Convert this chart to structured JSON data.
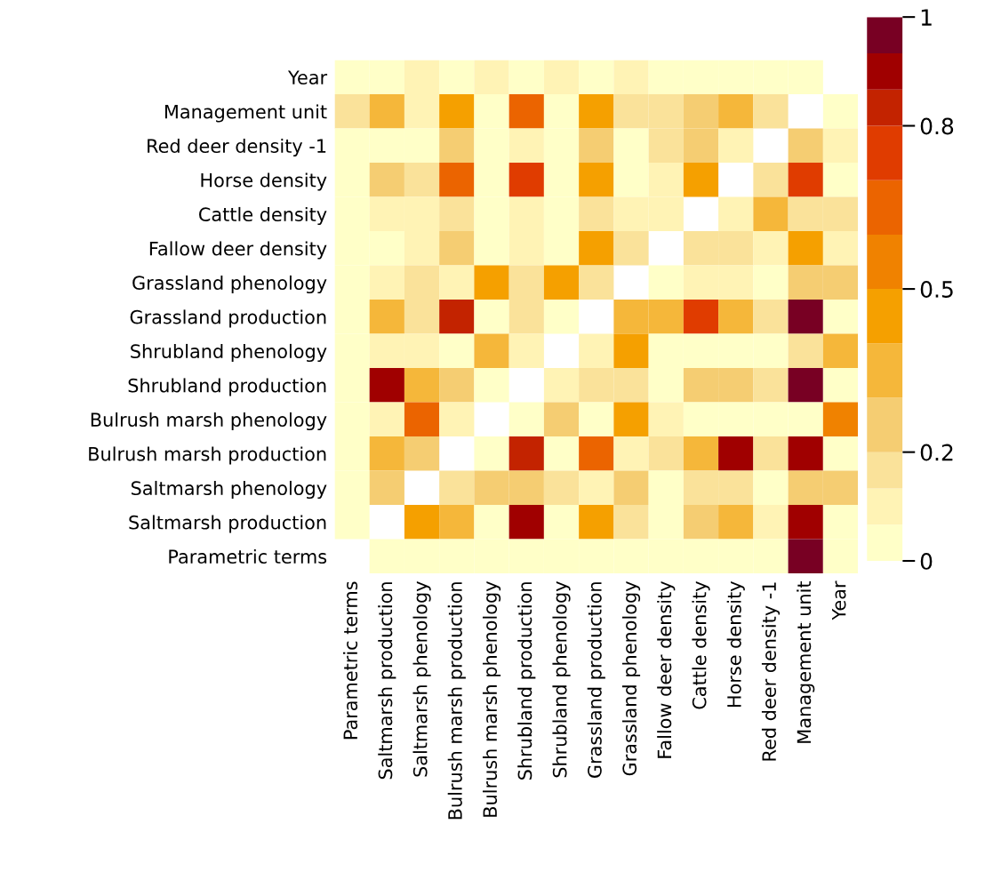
{
  "chart_data": {
    "type": "heatmap",
    "categories": [
      "Parametric terms",
      "Saltmarsh production",
      "Saltmarsh phenology",
      "Bulrush marsh production",
      "Bulrush marsh phenology",
      "Shrubland production",
      "Shrubland phenology",
      "Grassland production",
      "Grassland phenology",
      "Fallow deer density",
      "Cattle density",
      "Horse density",
      "Red deer density -1",
      "Management unit",
      "Year"
    ],
    "y_categories": [
      "Year",
      "Management unit",
      "Red deer density -1",
      "Horse density",
      "Cattle density",
      "Fallow deer density",
      "Grassland phenology",
      "Grassland production",
      "Shrubland phenology",
      "Shrubland production",
      "Bulrush marsh phenology",
      "Bulrush marsh production",
      "Saltmarsh phenology",
      "Saltmarsh production",
      "Parametric terms"
    ],
    "cells": [
      [
        0.03,
        0.03,
        0.1,
        0.03,
        0.1,
        0.03,
        0.1,
        0.03,
        0.1,
        0.03,
        0.03,
        0.03,
        0.03,
        0.03,
        null
      ],
      [
        0.17,
        0.35,
        0.1,
        0.45,
        0.03,
        0.65,
        0.03,
        0.45,
        0.17,
        0.17,
        0.25,
        0.35,
        0.17,
        null,
        0.03
      ],
      [
        0.03,
        0.03,
        0.03,
        0.25,
        0.03,
        0.1,
        0.03,
        0.25,
        0.03,
        0.17,
        0.25,
        0.1,
        null,
        0.25,
        0.1
      ],
      [
        0.03,
        0.25,
        0.17,
        0.65,
        0.03,
        0.75,
        0.03,
        0.45,
        0.03,
        0.1,
        0.45,
        null,
        0.17,
        0.75,
        0.03
      ],
      [
        0.03,
        0.1,
        0.1,
        0.17,
        0.03,
        0.1,
        0.03,
        0.17,
        0.1,
        0.1,
        null,
        0.1,
        0.35,
        0.17,
        0.17
      ],
      [
        0.03,
        0.03,
        0.1,
        0.25,
        0.03,
        0.1,
        0.03,
        0.45,
        0.17,
        null,
        0.17,
        0.17,
        0.1,
        0.45,
        0.1
      ],
      [
        0.03,
        0.1,
        0.17,
        0.1,
        0.45,
        0.17,
        0.45,
        0.17,
        null,
        0.03,
        0.1,
        0.1,
        0.03,
        0.25,
        0.25
      ],
      [
        0.03,
        0.35,
        0.17,
        0.83,
        0.03,
        0.17,
        0.03,
        null,
        0.35,
        0.35,
        0.75,
        0.35,
        0.17,
        0.97,
        0.03
      ],
      [
        0.03,
        0.1,
        0.1,
        0.03,
        0.35,
        0.1,
        null,
        0.1,
        0.45,
        0.03,
        0.03,
        0.03,
        0.03,
        0.17,
        0.35
      ],
      [
        0.03,
        0.9,
        0.35,
        0.25,
        0.03,
        null,
        0.1,
        0.17,
        0.17,
        0.03,
        0.25,
        0.25,
        0.17,
        0.97,
        0.03
      ],
      [
        0.03,
        0.1,
        0.65,
        0.1,
        null,
        0.03,
        0.25,
        0.03,
        0.45,
        0.1,
        0.03,
        0.03,
        0.03,
        0.03,
        0.55
      ],
      [
        0.03,
        0.35,
        0.25,
        null,
        0.03,
        0.83,
        0.03,
        0.65,
        0.1,
        0.17,
        0.35,
        0.9,
        0.17,
        0.9,
        0.03
      ],
      [
        0.03,
        0.25,
        null,
        0.17,
        0.25,
        0.25,
        0.17,
        0.1,
        0.25,
        0.03,
        0.17,
        0.17,
        0.03,
        0.25,
        0.25
      ],
      [
        0.03,
        null,
        0.45,
        0.35,
        0.03,
        0.9,
        0.03,
        0.45,
        0.17,
        0.03,
        0.25,
        0.35,
        0.1,
        0.9,
        0.03
      ],
      [
        null,
        0.03,
        0.03,
        0.03,
        0.03,
        0.03,
        0.03,
        0.03,
        0.03,
        0.03,
        0.03,
        0.03,
        0.03,
        0.97,
        0.03
      ]
    ],
    "clim": [
      0,
      1
    ],
    "cticks": [
      0,
      0.2,
      0.5,
      0.8,
      1
    ],
    "colors": [
      "#ffffc8",
      "#fff3b5",
      "#fae29a",
      "#f5cd72",
      "#f5b73a",
      "#f5a000",
      "#f08200",
      "#eb6400",
      "#e03c00",
      "#c32300",
      "#a00000",
      "#780023"
    ]
  }
}
